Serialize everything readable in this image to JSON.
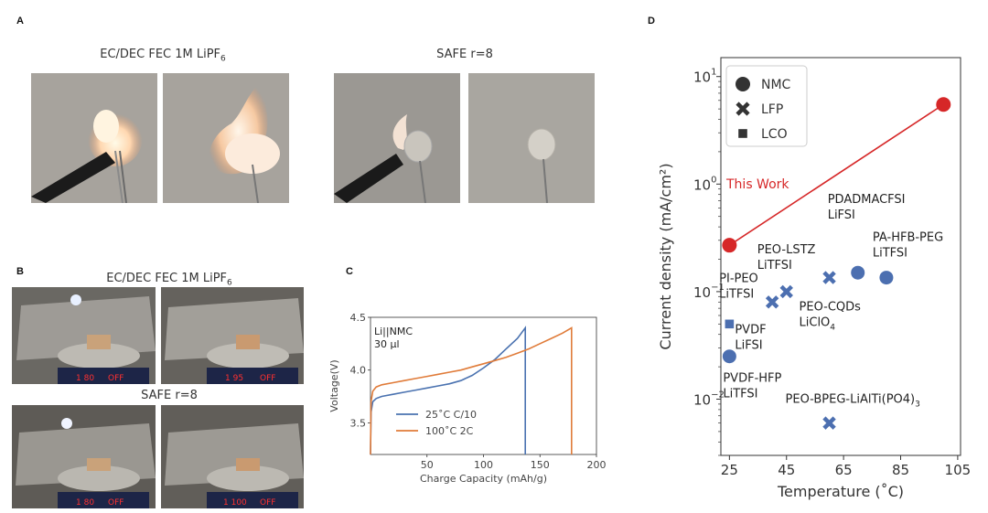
{
  "panels": {
    "a": {
      "letter": "A",
      "caption_left_main": "EC/DEC FEC 1M LiPF",
      "caption_left_sub": "6",
      "caption_right": "SAFE r=8"
    },
    "b": {
      "letter": "B",
      "caption_top_main": "EC/DEC FEC 1M LiPF",
      "caption_top_sub": "6",
      "caption_bottom": "SAFE r=8",
      "displays": [
        "1 80",
        "OFF",
        "1 95",
        "OFF",
        "1 80",
        "OFF",
        "1 100",
        "OFF"
      ]
    },
    "c": {
      "letter": "C"
    },
    "d": {
      "letter": "D"
    }
  },
  "colors": {
    "blue": "#4a72b0",
    "orange": "#e07b39",
    "red": "#d62728",
    "marker_blue": "#4c6fb0"
  },
  "chart_data": [
    {
      "id": "C",
      "type": "line",
      "annotation_line1": "Li||NMC",
      "annotation_line2": "30 μl",
      "xlabel": "Charge Capacity (mAh/g)",
      "ylabel": "Voltage(V)",
      "xlim": [
        0,
        200
      ],
      "ylim": [
        3.2,
        4.5
      ],
      "xticks": [
        50,
        100,
        150,
        200
      ],
      "yticks": [
        3.5,
        4.0,
        4.5
      ],
      "series": [
        {
          "name": "25˚C C/10",
          "color": "#4a72b0",
          "points": [
            [
              0,
              3.2
            ],
            [
              0.5,
              3.6
            ],
            [
              2,
              3.7
            ],
            [
              5,
              3.73
            ],
            [
              10,
              3.75
            ],
            [
              20,
              3.77
            ],
            [
              30,
              3.79
            ],
            [
              40,
              3.81
            ],
            [
              50,
              3.83
            ],
            [
              60,
              3.85
            ],
            [
              70,
              3.87
            ],
            [
              80,
              3.9
            ],
            [
              90,
              3.95
            ],
            [
              100,
              4.02
            ],
            [
              110,
              4.1
            ],
            [
              120,
              4.2
            ],
            [
              130,
              4.3
            ],
            [
              137,
              4.4
            ],
            [
              137,
              3.2
            ]
          ]
        },
        {
          "name": "100˚C 2C",
          "color": "#e07b39",
          "points": [
            [
              0,
              3.2
            ],
            [
              0.5,
              3.7
            ],
            [
              2,
              3.8
            ],
            [
              5,
              3.84
            ],
            [
              10,
              3.86
            ],
            [
              20,
              3.88
            ],
            [
              30,
              3.9
            ],
            [
              40,
              3.92
            ],
            [
              50,
              3.94
            ],
            [
              60,
              3.96
            ],
            [
              70,
              3.98
            ],
            [
              80,
              4.0
            ],
            [
              90,
              4.03
            ],
            [
              100,
              4.06
            ],
            [
              110,
              4.09
            ],
            [
              120,
              4.12
            ],
            [
              130,
              4.16
            ],
            [
              140,
              4.2
            ],
            [
              150,
              4.25
            ],
            [
              160,
              4.3
            ],
            [
              170,
              4.35
            ],
            [
              178,
              4.4
            ],
            [
              178,
              3.2
            ]
          ]
        }
      ]
    },
    {
      "id": "D",
      "type": "scatter",
      "xlabel": "Temperature (˚C)",
      "ylabel": "Current density (mA/cm²)",
      "xlim": [
        22,
        106
      ],
      "ylim": [
        0.003,
        15
      ],
      "y_scale": "log",
      "xticks": [
        25,
        45,
        65,
        85,
        105
      ],
      "yticks": [
        {
          "value": 0.01,
          "base": "10",
          "exp": "−2"
        },
        {
          "value": 0.1,
          "base": "10",
          "exp": "−1"
        },
        {
          "value": 1,
          "base": "10",
          "exp": "0"
        },
        {
          "value": 10,
          "base": "10",
          "exp": "1"
        }
      ],
      "legend": {
        "position": "top-left",
        "entries": [
          {
            "label": "NMC",
            "marker": "circle"
          },
          {
            "label": "LFP",
            "marker": "x"
          },
          {
            "label": "LCO",
            "marker": "square"
          }
        ]
      },
      "this_work": {
        "label": "This Work",
        "points": [
          {
            "x": 25,
            "y": 0.27
          },
          {
            "x": 100,
            "y": 5.5
          }
        ]
      },
      "points": [
        {
          "x": 70,
          "y": 0.15,
          "marker": "circle",
          "line1": "PDADMACFSI",
          "line2": "LiFSI"
        },
        {
          "x": 80,
          "y": 0.135,
          "marker": "circle",
          "line1": "PA-HFB-PEG",
          "line2": "LiTFSI"
        },
        {
          "x": 60,
          "y": 0.135,
          "marker": "x",
          "line1": "PEO-CQDs",
          "line2": "LiClO",
          "line2_sub": "4"
        },
        {
          "x": 45,
          "y": 0.1,
          "marker": "x",
          "line1": "PEO-LSTZ",
          "line2": "LiTFSI"
        },
        {
          "x": 40,
          "y": 0.08,
          "marker": "x",
          "line1": "PI-PEO",
          "line2": "LiTFSI"
        },
        {
          "x": 25,
          "y": 0.05,
          "marker": "square",
          "line1": "PVDF",
          "line2": "LiFSI"
        },
        {
          "x": 25,
          "y": 0.025,
          "marker": "circle",
          "line1": "PVDF-HFP",
          "line2": "LiTFSI"
        },
        {
          "x": 60,
          "y": 0.006,
          "marker": "x",
          "line1": "PEO-BPEG-LiAlTi(PO4)",
          "line2": "3"
        }
      ]
    }
  ]
}
